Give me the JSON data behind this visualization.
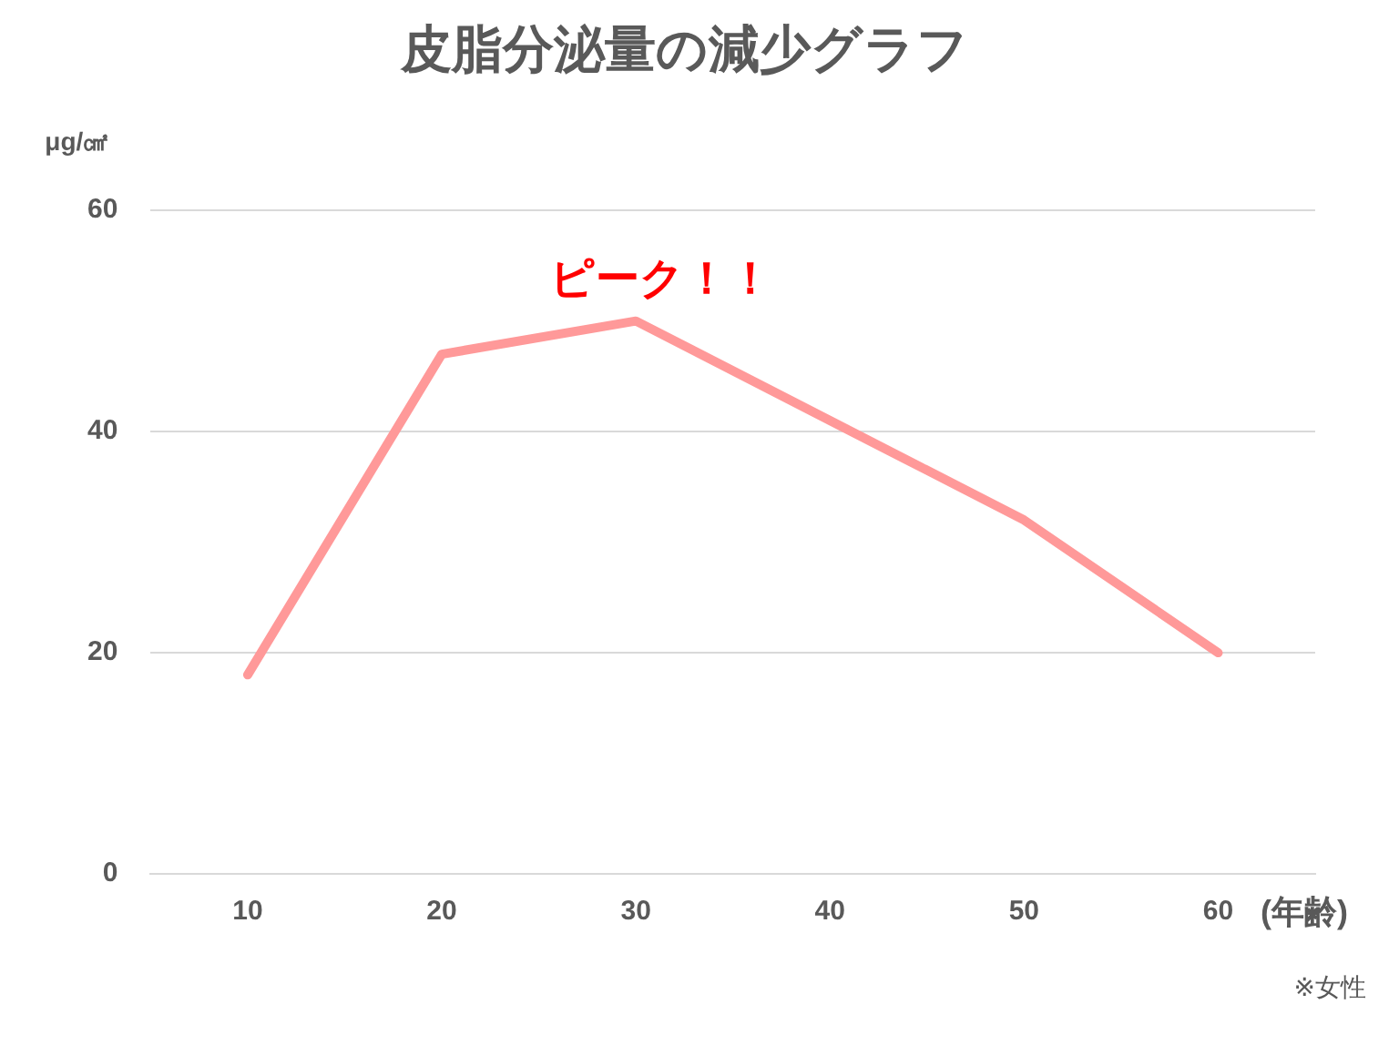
{
  "chart_data": {
    "type": "line",
    "title": "皮脂分泌量の減少グラフ",
    "ylabel": "μg/㎠",
    "xlabel": "(年齢)",
    "categories": [
      "10",
      "20",
      "30",
      "40",
      "50",
      "60"
    ],
    "series": [
      {
        "color": "#ff9999",
        "values": [
          18,
          47,
          50,
          41,
          32,
          20
        ]
      }
    ],
    "ylim": [
      0,
      60
    ],
    "yticks": [
      0,
      20,
      40,
      60
    ],
    "grid": "y",
    "legend": false,
    "marker": "none",
    "line_style": "solid",
    "annotations": [
      {
        "text": "ピーク！！",
        "x": "30",
        "y": 50
      },
      "※女性"
    ]
  }
}
